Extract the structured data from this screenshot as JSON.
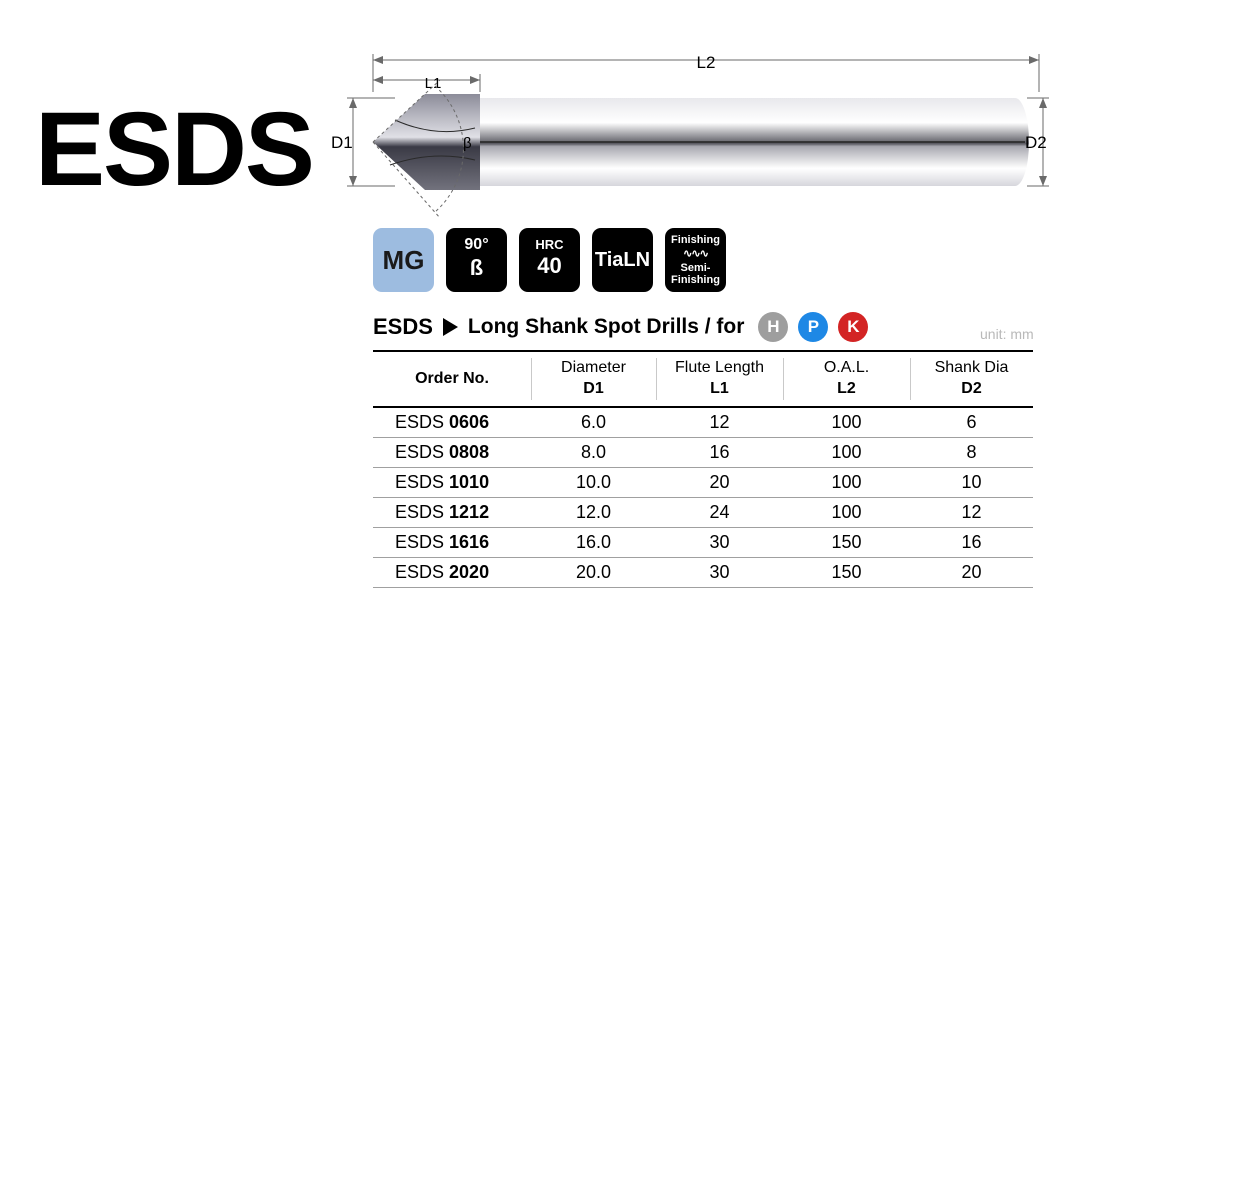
{
  "logo": "ESDS",
  "diagram": {
    "labels": {
      "D1": "D1",
      "D2": "D2",
      "L1": "L1",
      "L2": "L2",
      "beta": "β"
    },
    "colors": {
      "tip_dark": "#4e4e5a",
      "tip_reflect": "#bfbfc9",
      "shank_light": "#f4f4f6",
      "shank_shadow": "#b9b9c0",
      "line": "#6a6a6a"
    }
  },
  "badges": {
    "mg": "MG",
    "angle_top": "90°",
    "angle_bot": "ß",
    "hrc_top": "HRC",
    "hrc_bot": "40",
    "tialn": "TiaLN",
    "fin_top": "Finishing",
    "fin_bot1": "Semi-",
    "fin_bot2": "Finishing",
    "colors": {
      "mg_bg": "#9dbce0",
      "dark_bg": "#000000"
    }
  },
  "title": {
    "product": "ESDS",
    "description": "Long Shank Spot Drills / for",
    "circles": [
      {
        "letter": "H",
        "bg": "#9e9e9e"
      },
      {
        "letter": "P",
        "bg": "#1e88e5"
      },
      {
        "letter": "K",
        "bg": "#d32424"
      }
    ]
  },
  "unit_label": "unit: mm",
  "table": {
    "columns": [
      {
        "label": "Order No.",
        "symbol": ""
      },
      {
        "label": "Diameter",
        "symbol": "D1"
      },
      {
        "label": "Flute Length",
        "symbol": "L1"
      },
      {
        "label": "O.A.L.",
        "symbol": "L2"
      },
      {
        "label": "Shank Dia",
        "symbol": "D2"
      }
    ],
    "rows": [
      {
        "prefix": "ESDS ",
        "code": "0606",
        "d1": "6.0",
        "l1": "12",
        "l2": "100",
        "d2": "6"
      },
      {
        "prefix": "ESDS ",
        "code": "0808",
        "d1": "8.0",
        "l1": "16",
        "l2": "100",
        "d2": "8"
      },
      {
        "prefix": "ESDS ",
        "code": "1010",
        "d1": "10.0",
        "l1": "20",
        "l2": "100",
        "d2": "10"
      },
      {
        "prefix": "ESDS ",
        "code": "1212",
        "d1": "12.0",
        "l1": "24",
        "l2": "100",
        "d2": "12"
      },
      {
        "prefix": "ESDS ",
        "code": "1616",
        "d1": "16.0",
        "l1": "30",
        "l2": "150",
        "d2": "16"
      },
      {
        "prefix": "ESDS ",
        "code": "2020",
        "d1": "20.0",
        "l1": "30",
        "l2": "150",
        "d2": "20"
      }
    ]
  }
}
